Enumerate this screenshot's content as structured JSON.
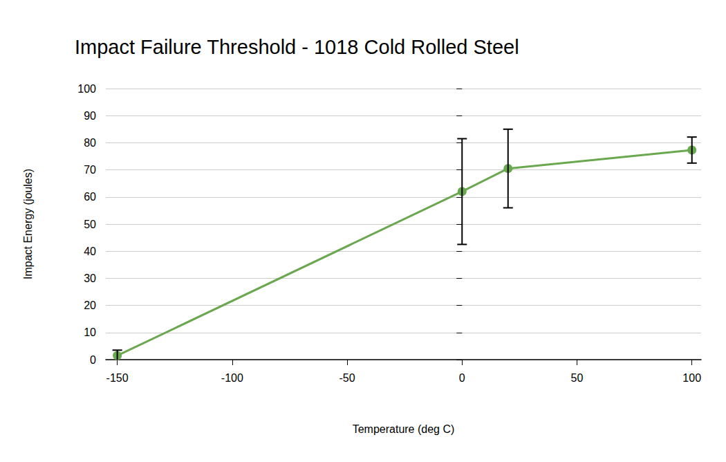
{
  "chart_data": {
    "type": "line",
    "title": "Impact Failure Threshold - 1018 Cold Rolled Steel",
    "x": [
      -150,
      0,
      20,
      100
    ],
    "values": [
      1.5,
      62,
      70.5,
      77.3
    ],
    "errors": [
      2,
      19.5,
      14.5,
      4.8
    ],
    "color": "#6aa84f",
    "marker": "circle",
    "xlabel": "Temperature (deg C)",
    "ylabel": "Impact Energy (joules)",
    "xlim": [
      -155,
      104
    ],
    "xticks": [
      -150,
      -100,
      -50,
      0,
      50,
      100
    ],
    "ylim": [
      0,
      100
    ],
    "yticks": [
      0,
      10,
      20,
      30,
      40,
      50,
      60,
      70,
      80,
      90,
      100
    ],
    "grid": true
  }
}
